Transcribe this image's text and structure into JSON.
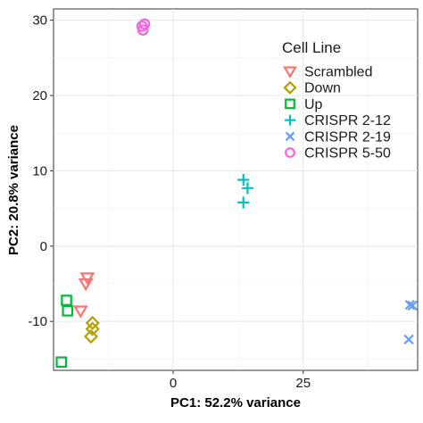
{
  "chart_data": {
    "type": "scatter",
    "xlabel": "PC1: 52.2% variance",
    "ylabel": "PC2: 20.8% variance",
    "xlim": [
      -23,
      47
    ],
    "ylim": [
      -16.5,
      31.5
    ],
    "xticks": [
      0,
      25
    ],
    "yticks": [
      -10,
      0,
      10,
      20,
      30
    ],
    "grid": true,
    "legend_title": "Cell Line",
    "legend_position": "top-right",
    "series": [
      {
        "name": "Scrambled",
        "marker": "triangle-down",
        "color": "#F8766D",
        "points": [
          [
            -16.5,
            -4.2
          ],
          [
            -16.8,
            -5.0
          ],
          [
            -17.8,
            -8.6
          ]
        ]
      },
      {
        "name": "Down",
        "marker": "diamond",
        "color": "#B79F00",
        "points": [
          [
            -15.5,
            -10.2
          ],
          [
            -15.5,
            -11.0
          ],
          [
            -15.8,
            -12.0
          ]
        ]
      },
      {
        "name": "Up",
        "marker": "square",
        "color": "#00BA38",
        "points": [
          [
            -20.5,
            -7.2
          ],
          [
            -20.3,
            -8.6
          ],
          [
            -21.5,
            -15.4
          ]
        ]
      },
      {
        "name": "CRISPR 2-12",
        "marker": "plus",
        "color": "#00BFC4",
        "points": [
          [
            13.5,
            8.8
          ],
          [
            14.3,
            7.7
          ],
          [
            13.5,
            5.8
          ]
        ]
      },
      {
        "name": "CRISPR 2-19",
        "marker": "x",
        "color": "#619CFF",
        "points": [
          [
            45.5,
            -7.8
          ],
          [
            46.0,
            -7.9
          ],
          [
            45.3,
            -12.4
          ]
        ]
      },
      {
        "name": "CRISPR 5-50",
        "marker": "circle",
        "color": "#F564E3",
        "points": [
          [
            -6.0,
            29.2
          ],
          [
            -5.5,
            29.5
          ],
          [
            -5.8,
            28.7
          ]
        ]
      }
    ]
  }
}
